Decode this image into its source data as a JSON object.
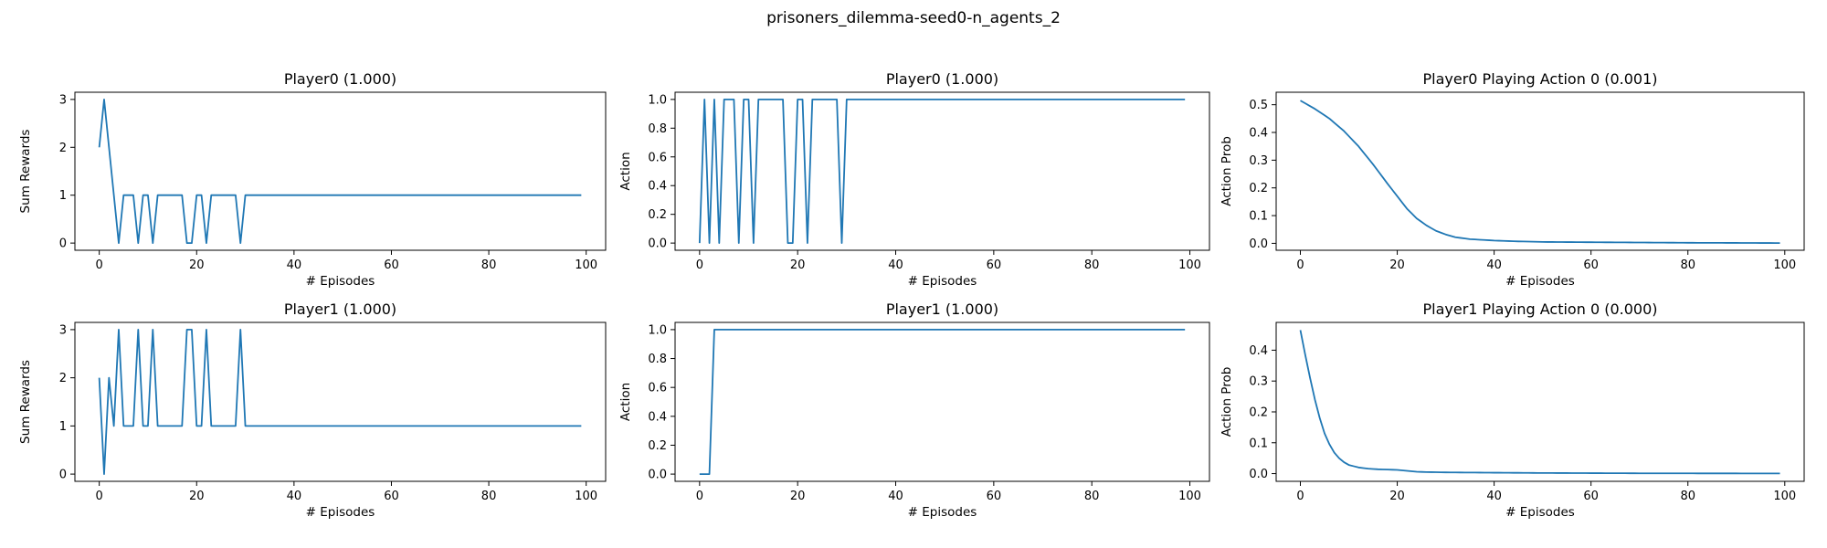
{
  "figure": {
    "suptitle": "prisoners_dilemma-seed0-n_agents_2"
  },
  "colors": {
    "line": "#1f77b4",
    "axis": "#000000",
    "background": "#ffffff"
  },
  "chart_data": [
    {
      "type": "line",
      "title": "Player0 (1.000)",
      "xlabel": "# Episodes",
      "ylabel": "Sum Rewards",
      "xlim": [
        -5,
        104
      ],
      "ylim": [
        -0.15,
        3.15
      ],
      "xticks": [
        0,
        20,
        40,
        60,
        80,
        100
      ],
      "yticks": [
        0,
        1,
        2,
        3
      ],
      "x_range": [
        0,
        99
      ],
      "y_points": [
        [
          0,
          2
        ],
        [
          1,
          3
        ],
        [
          4,
          0
        ],
        [
          5,
          1
        ],
        [
          7,
          1
        ],
        [
          8,
          0
        ],
        [
          9,
          1
        ],
        [
          10,
          1
        ],
        [
          11,
          0
        ],
        [
          12,
          1
        ],
        [
          17,
          1
        ],
        [
          18,
          0
        ],
        [
          19,
          0
        ],
        [
          20,
          1
        ],
        [
          21,
          1
        ],
        [
          22,
          0
        ],
        [
          23,
          1
        ],
        [
          28,
          1
        ],
        [
          29,
          0
        ],
        [
          30,
          1
        ],
        [
          99,
          1
        ]
      ],
      "grid": false
    },
    {
      "type": "line",
      "title": "Player0 (1.000)",
      "xlabel": "# Episodes",
      "ylabel": "Action",
      "xlim": [
        -5,
        104
      ],
      "ylim": [
        -0.05,
        1.05
      ],
      "xticks": [
        0,
        20,
        40,
        60,
        80,
        100
      ],
      "yticks": [
        0.0,
        0.2,
        0.4,
        0.6,
        0.8,
        1.0
      ],
      "x_range": [
        0,
        99
      ],
      "y_points": [
        [
          0,
          0
        ],
        [
          1,
          1
        ],
        [
          2,
          0
        ],
        [
          3,
          1
        ],
        [
          4,
          0
        ],
        [
          5,
          1
        ],
        [
          7,
          1
        ],
        [
          8,
          0
        ],
        [
          9,
          1
        ],
        [
          10,
          1
        ],
        [
          11,
          0
        ],
        [
          12,
          1
        ],
        [
          17,
          1
        ],
        [
          18,
          0
        ],
        [
          19,
          0
        ],
        [
          20,
          1
        ],
        [
          21,
          1
        ],
        [
          22,
          0
        ],
        [
          23,
          1
        ],
        [
          28,
          1
        ],
        [
          29,
          0
        ],
        [
          30,
          1
        ],
        [
          99,
          1
        ]
      ],
      "grid": false
    },
    {
      "type": "line",
      "title": "Player0 Playing Action 0 (0.001)",
      "xlabel": "# Episodes",
      "ylabel": "Action Prob",
      "xlim": [
        -5,
        104
      ],
      "ylim": [
        -0.025,
        0.545
      ],
      "xticks": [
        0,
        20,
        40,
        60,
        80,
        100
      ],
      "yticks": [
        0.0,
        0.1,
        0.2,
        0.3,
        0.4,
        0.5
      ],
      "x_range": [
        0,
        99
      ],
      "y_points": [
        [
          0,
          0.515
        ],
        [
          3,
          0.485
        ],
        [
          6,
          0.45
        ],
        [
          9,
          0.405
        ],
        [
          12,
          0.35
        ],
        [
          15,
          0.285
        ],
        [
          18,
          0.215
        ],
        [
          20,
          0.17
        ],
        [
          22,
          0.125
        ],
        [
          24,
          0.09
        ],
        [
          26,
          0.065
        ],
        [
          28,
          0.045
        ],
        [
          30,
          0.032
        ],
        [
          32,
          0.022
        ],
        [
          35,
          0.015
        ],
        [
          40,
          0.01
        ],
        [
          45,
          0.007
        ],
        [
          50,
          0.005
        ],
        [
          60,
          0.004
        ],
        [
          70,
          0.003
        ],
        [
          80,
          0.002
        ],
        [
          90,
          0.0015
        ],
        [
          99,
          0.001
        ]
      ],
      "grid": false
    },
    {
      "type": "line",
      "title": "Player1 (1.000)",
      "xlabel": "# Episodes",
      "ylabel": "Sum Rewards",
      "xlim": [
        -5,
        104
      ],
      "ylim": [
        -0.15,
        3.15
      ],
      "xticks": [
        0,
        20,
        40,
        60,
        80,
        100
      ],
      "yticks": [
        0,
        1,
        2,
        3
      ],
      "x_range": [
        0,
        99
      ],
      "y_points": [
        [
          0,
          2
        ],
        [
          1,
          0
        ],
        [
          2,
          2
        ],
        [
          3,
          1
        ],
        [
          4,
          3
        ],
        [
          5,
          1
        ],
        [
          7,
          1
        ],
        [
          8,
          3
        ],
        [
          9,
          1
        ],
        [
          10,
          1
        ],
        [
          11,
          3
        ],
        [
          12,
          1
        ],
        [
          17,
          1
        ],
        [
          18,
          3
        ],
        [
          19,
          3
        ],
        [
          20,
          1
        ],
        [
          21,
          1
        ],
        [
          22,
          3
        ],
        [
          23,
          1
        ],
        [
          28,
          1
        ],
        [
          29,
          3
        ],
        [
          30,
          1
        ],
        [
          99,
          1
        ]
      ],
      "grid": false
    },
    {
      "type": "line",
      "title": "Player1 (1.000)",
      "xlabel": "# Episodes",
      "ylabel": "Action",
      "xlim": [
        -5,
        104
      ],
      "ylim": [
        -0.05,
        1.05
      ],
      "xticks": [
        0,
        20,
        40,
        60,
        80,
        100
      ],
      "yticks": [
        0.0,
        0.2,
        0.4,
        0.6,
        0.8,
        1.0
      ],
      "x_range": [
        0,
        99
      ],
      "y_points": [
        [
          0,
          0
        ],
        [
          2,
          0
        ],
        [
          3,
          1
        ],
        [
          99,
          1
        ]
      ],
      "grid": false
    },
    {
      "type": "line",
      "title": "Player1 Playing Action 0 (0.000)",
      "xlabel": "# Episodes",
      "ylabel": "Action Prob",
      "xlim": [
        -5,
        104
      ],
      "ylim": [
        -0.025,
        0.49
      ],
      "xticks": [
        0,
        20,
        40,
        60,
        80,
        100
      ],
      "yticks": [
        0.0,
        0.1,
        0.2,
        0.3,
        0.4
      ],
      "x_range": [
        0,
        99
      ],
      "y_points": [
        [
          0,
          0.465
        ],
        [
          1,
          0.385
        ],
        [
          2,
          0.31
        ],
        [
          3,
          0.24
        ],
        [
          4,
          0.18
        ],
        [
          5,
          0.13
        ],
        [
          6,
          0.095
        ],
        [
          7,
          0.068
        ],
        [
          8,
          0.05
        ],
        [
          9,
          0.037
        ],
        [
          10,
          0.028
        ],
        [
          12,
          0.02
        ],
        [
          14,
          0.016
        ],
        [
          16,
          0.014
        ],
        [
          18,
          0.013
        ],
        [
          20,
          0.012
        ],
        [
          22,
          0.009
        ],
        [
          24,
          0.006
        ],
        [
          26,
          0.005
        ],
        [
          30,
          0.004
        ],
        [
          40,
          0.003
        ],
        [
          50,
          0.002
        ],
        [
          70,
          0.001
        ],
        [
          99,
          0.0005
        ]
      ],
      "grid": false
    }
  ]
}
